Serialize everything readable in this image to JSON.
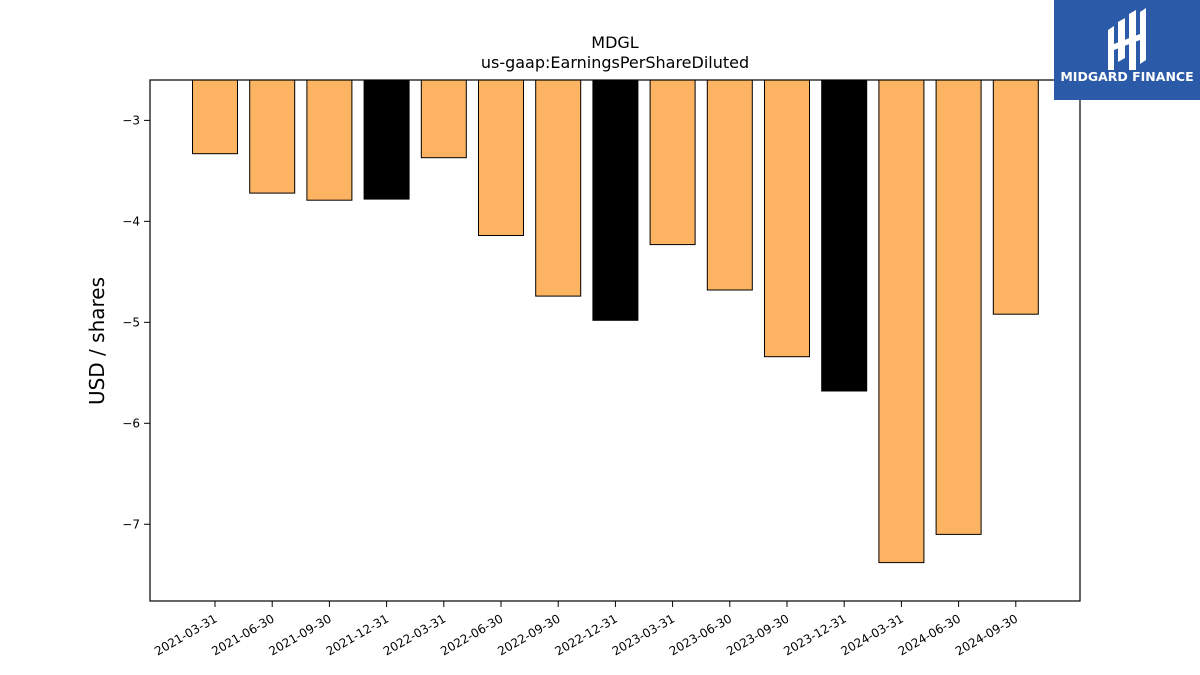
{
  "chart_data": {
    "type": "bar",
    "title": "MDGL",
    "subtitle": "us-gaap:EarningsPerShareDiluted",
    "xlabel": "",
    "ylabel": "USD / shares",
    "ylim": [
      -7.76,
      -2.6
    ],
    "yticks": [
      -3,
      -4,
      -5,
      -6,
      -7
    ],
    "ytick_labels": [
      "−3",
      "−4",
      "−5",
      "−6",
      "−7"
    ],
    "categories": [
      "2021-03-31",
      "2021-06-30",
      "2021-09-30",
      "2021-12-31",
      "2022-03-31",
      "2022-06-30",
      "2022-09-30",
      "2022-12-31",
      "2023-03-31",
      "2023-06-30",
      "2023-09-30",
      "2023-12-31",
      "2024-03-31",
      "2024-06-30",
      "2024-09-30"
    ],
    "values": [
      -3.33,
      -3.72,
      -3.79,
      -3.78,
      -3.37,
      -4.14,
      -4.74,
      -4.98,
      -4.23,
      -4.68,
      -5.34,
      -5.68,
      -7.38,
      -7.1,
      -4.92
    ],
    "colors": [
      "#fdb462",
      "#fdb462",
      "#fdb462",
      "#000000",
      "#fdb462",
      "#fdb462",
      "#fdb462",
      "#000000",
      "#fdb462",
      "#fdb462",
      "#fdb462",
      "#000000",
      "#fdb462",
      "#fdb462",
      "#fdb462"
    ],
    "grid": false,
    "legend": "none"
  },
  "logo": {
    "text": "MIDGARD FINANCE",
    "background": "#2a5aa8"
  }
}
